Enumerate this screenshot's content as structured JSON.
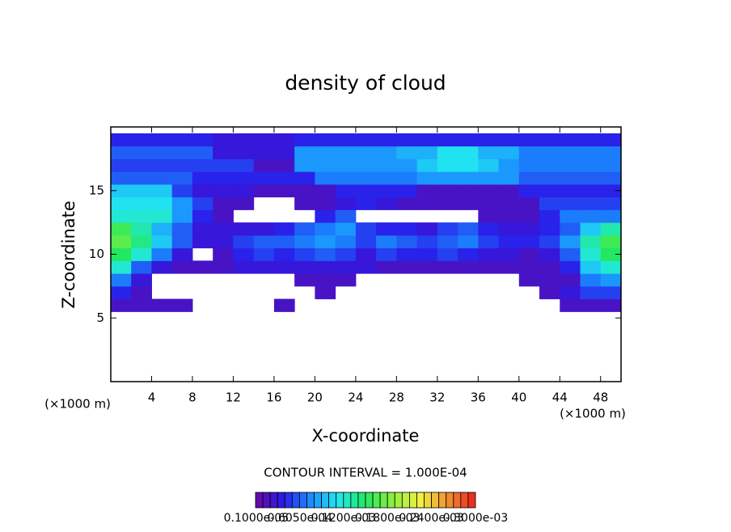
{
  "chart_data": {
    "type": "heatmap",
    "title": "density of cloud",
    "x_label": "X-coordinate",
    "y_label": "Z-coordinate",
    "x_unit": "(×1000 m)",
    "y_unit": "(×1000 m)",
    "annotation": "CONTOUR INTERVAL = 1.000E-04",
    "xlim": [
      0,
      50
    ],
    "ylim": [
      0,
      20
    ],
    "xticks": [
      4,
      8,
      12,
      16,
      20,
      24,
      28,
      32,
      36,
      40,
      44,
      48
    ],
    "yticks": [
      5,
      10,
      15
    ],
    "x": [
      1,
      3,
      5,
      7,
      9,
      11,
      13,
      15,
      17,
      19,
      21,
      23,
      25,
      27,
      29,
      31,
      33,
      35,
      37,
      39,
      41,
      43,
      45,
      47,
      49
    ],
    "y": [
      6,
      7,
      8,
      9,
      10,
      11,
      12,
      13,
      14,
      15,
      16,
      17,
      18,
      19
    ],
    "z": [
      [
        2e-05,
        2e-05,
        2e-05,
        2e-05,
        null,
        null,
        null,
        null,
        2e-05,
        null,
        null,
        null,
        null,
        null,
        null,
        null,
        null,
        null,
        null,
        null,
        null,
        null,
        2e-05,
        2e-05,
        2e-05
      ],
      [
        4e-05,
        2e-05,
        null,
        null,
        null,
        null,
        null,
        null,
        null,
        null,
        2e-05,
        null,
        null,
        null,
        null,
        null,
        null,
        null,
        null,
        null,
        null,
        2e-05,
        3e-05,
        5e-05,
        5e-05
      ],
      [
        7e-05,
        3e-05,
        null,
        null,
        null,
        null,
        null,
        null,
        null,
        2e-05,
        2e-05,
        2e-05,
        null,
        null,
        null,
        null,
        null,
        null,
        null,
        null,
        2e-05,
        2e-05,
        2e-05,
        7e-05,
        8e-05
      ],
      [
        0.00012,
        6e-05,
        3e-05,
        2e-05,
        2e-05,
        2e-05,
        3e-05,
        3e-05,
        3e-05,
        3e-05,
        3e-05,
        3e-05,
        3e-05,
        2e-05,
        2e-05,
        2e-05,
        2e-05,
        2e-05,
        2e-05,
        2e-05,
        2e-05,
        2e-05,
        4e-05,
        0.0001,
        0.00012
      ],
      [
        0.00015,
        0.00012,
        7e-05,
        3e-05,
        null,
        2e-05,
        4e-05,
        5e-05,
        4e-05,
        5e-05,
        6e-05,
        5e-05,
        3e-05,
        5e-05,
        4e-05,
        4e-05,
        5e-05,
        4e-05,
        3e-05,
        3e-05,
        2e-05,
        3e-05,
        6e-05,
        0.00012,
        0.00015
      ],
      [
        0.00017,
        0.00014,
        0.0001,
        6e-05,
        3e-05,
        3e-05,
        5e-05,
        6e-05,
        6e-05,
        7e-05,
        8e-05,
        7e-05,
        5e-05,
        7e-05,
        6e-05,
        5e-05,
        6e-05,
        7e-05,
        5e-05,
        4e-05,
        4e-05,
        5e-05,
        8e-05,
        0.00013,
        0.00016
      ],
      [
        0.00016,
        0.00013,
        9e-05,
        6e-05,
        3e-05,
        3e-05,
        3e-05,
        3e-05,
        4e-05,
        6e-05,
        7e-05,
        8e-05,
        5e-05,
        4e-05,
        4e-05,
        3e-05,
        5e-05,
        6e-05,
        4e-05,
        3e-05,
        3e-05,
        4e-05,
        6e-05,
        0.0001,
        0.00013
      ],
      [
        0.00012,
        0.00012,
        0.00012,
        8e-05,
        4e-05,
        2e-05,
        null,
        null,
        null,
        null,
        4e-05,
        6e-05,
        null,
        null,
        null,
        null,
        null,
        null,
        2e-05,
        2e-05,
        2e-05,
        4e-05,
        7e-05,
        7e-05,
        7e-05
      ],
      [
        0.00011,
        0.00011,
        0.00011,
        8e-05,
        5e-05,
        2e-05,
        2e-05,
        null,
        null,
        2e-05,
        2e-05,
        3e-05,
        4e-05,
        3e-05,
        2e-05,
        2e-05,
        2e-05,
        2e-05,
        2e-05,
        2e-05,
        2e-05,
        5e-05,
        5e-05,
        5e-05,
        5e-05
      ],
      [
        0.0001,
        0.0001,
        0.0001,
        5e-05,
        3e-05,
        3e-05,
        3e-05,
        2e-05,
        2e-05,
        2e-05,
        2e-05,
        4e-05,
        4e-05,
        4e-05,
        4e-05,
        2e-05,
        2e-05,
        2e-05,
        2e-05,
        2e-05,
        4e-05,
        4e-05,
        4e-05,
        4e-05,
        4e-05
      ],
      [
        6e-05,
        6e-05,
        6e-05,
        6e-05,
        4e-05,
        4e-05,
        4e-05,
        4e-05,
        4e-05,
        4e-05,
        7e-05,
        7e-05,
        7e-05,
        7e-05,
        7e-05,
        8e-05,
        8e-05,
        8e-05,
        8e-05,
        8e-05,
        6e-05,
        6e-05,
        6e-05,
        6e-05,
        6e-05
      ],
      [
        5e-05,
        5e-05,
        5e-05,
        5e-05,
        5e-05,
        5e-05,
        5e-05,
        2e-05,
        2e-05,
        8e-05,
        8e-05,
        8e-05,
        8e-05,
        8e-05,
        8e-05,
        0.0001,
        0.00011,
        0.00011,
        0.0001,
        8e-05,
        7e-05,
        7e-05,
        7e-05,
        7e-05,
        7e-05
      ],
      [
        6e-05,
        6e-05,
        6e-05,
        6e-05,
        6e-05,
        3e-05,
        3e-05,
        3e-05,
        3e-05,
        8e-05,
        8e-05,
        8e-05,
        8e-05,
        8e-05,
        9e-05,
        9e-05,
        0.00011,
        0.00011,
        9e-05,
        9e-05,
        7e-05,
        7e-05,
        7e-05,
        7e-05,
        7e-05
      ],
      [
        4e-05,
        4e-05,
        4e-05,
        4e-05,
        4e-05,
        3e-05,
        3e-05,
        3e-05,
        3e-05,
        4e-05,
        4e-05,
        4e-05,
        4e-05,
        4e-05,
        4e-05,
        4e-05,
        4e-05,
        4e-05,
        4e-05,
        4e-05,
        4e-05,
        4e-05,
        4e-05,
        4e-05,
        4e-05
      ]
    ],
    "clim": [
      0,
      0.0003
    ],
    "colorscale": [
      "#6a0a9e",
      "#2a1ae8",
      "#1a8cff",
      "#22e8f0",
      "#22e860",
      "#90f040",
      "#f0f040",
      "#f09030",
      "#e82020"
    ],
    "colorbar_ticks": [
      {
        "value": 1e-06,
        "label": "0.1000e-05"
      },
      {
        "value": 6.05e-05,
        "label": "0.6050e-04"
      },
      {
        "value": 0.00012,
        "label": "0.1200e-03"
      },
      {
        "value": 0.00018,
        "label": "0.1800e-03"
      },
      {
        "value": 0.00024,
        "label": "0.2400e-03"
      },
      {
        "value": 0.0003,
        "label": "0.3000e-03"
      }
    ]
  }
}
